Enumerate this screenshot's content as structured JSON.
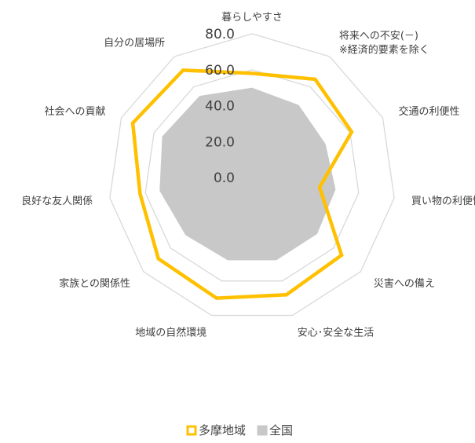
{
  "chart_data": {
    "type": "radar",
    "categories": [
      "暮らしやすさ",
      "将来への不安(－)\n※経済的要素を除く",
      "交通の利便性",
      "買い物の利便性",
      "災害への備え",
      "安心･安全な生活",
      "地域の自然環境",
      "家族との関係性",
      "良好な友人関係",
      "社会への貢献",
      "自分の居場所"
    ],
    "series": [
      {
        "name": "多摩地域",
        "color": "#FFC000",
        "values": [
          58,
          65,
          61,
          38,
          66,
          68,
          70,
          69,
          63,
          73,
          71
        ]
      },
      {
        "name": "全国",
        "color": "#C8C8C8",
        "values": [
          50,
          48,
          45,
          47,
          48,
          48,
          48,
          49,
          52,
          55,
          54
        ]
      }
    ],
    "ylim": [
      0,
      80
    ],
    "yticks": [
      {
        "value": 0,
        "label": "0.0"
      },
      {
        "value": 20,
        "label": "20.0"
      },
      {
        "value": 40,
        "label": "40.0"
      },
      {
        "value": 60,
        "label": "60.0"
      },
      {
        "value": 80,
        "label": "80.0"
      }
    ],
    "legend": "bottom"
  }
}
